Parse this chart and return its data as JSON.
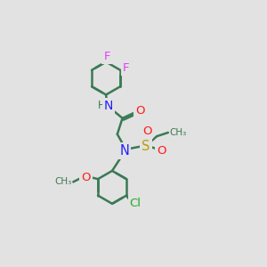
{
  "background_color": "#e2e2e2",
  "bond_color": "#3a7a55",
  "bond_width": 1.8,
  "atom_colors": {
    "F": "#e040fb",
    "N": "#2020ff",
    "O": "#ff1a1a",
    "S": "#b8a000",
    "Cl": "#20aa20",
    "C": "#3a7a55",
    "H": "#3a7a55"
  },
  "font_size": 9.5
}
